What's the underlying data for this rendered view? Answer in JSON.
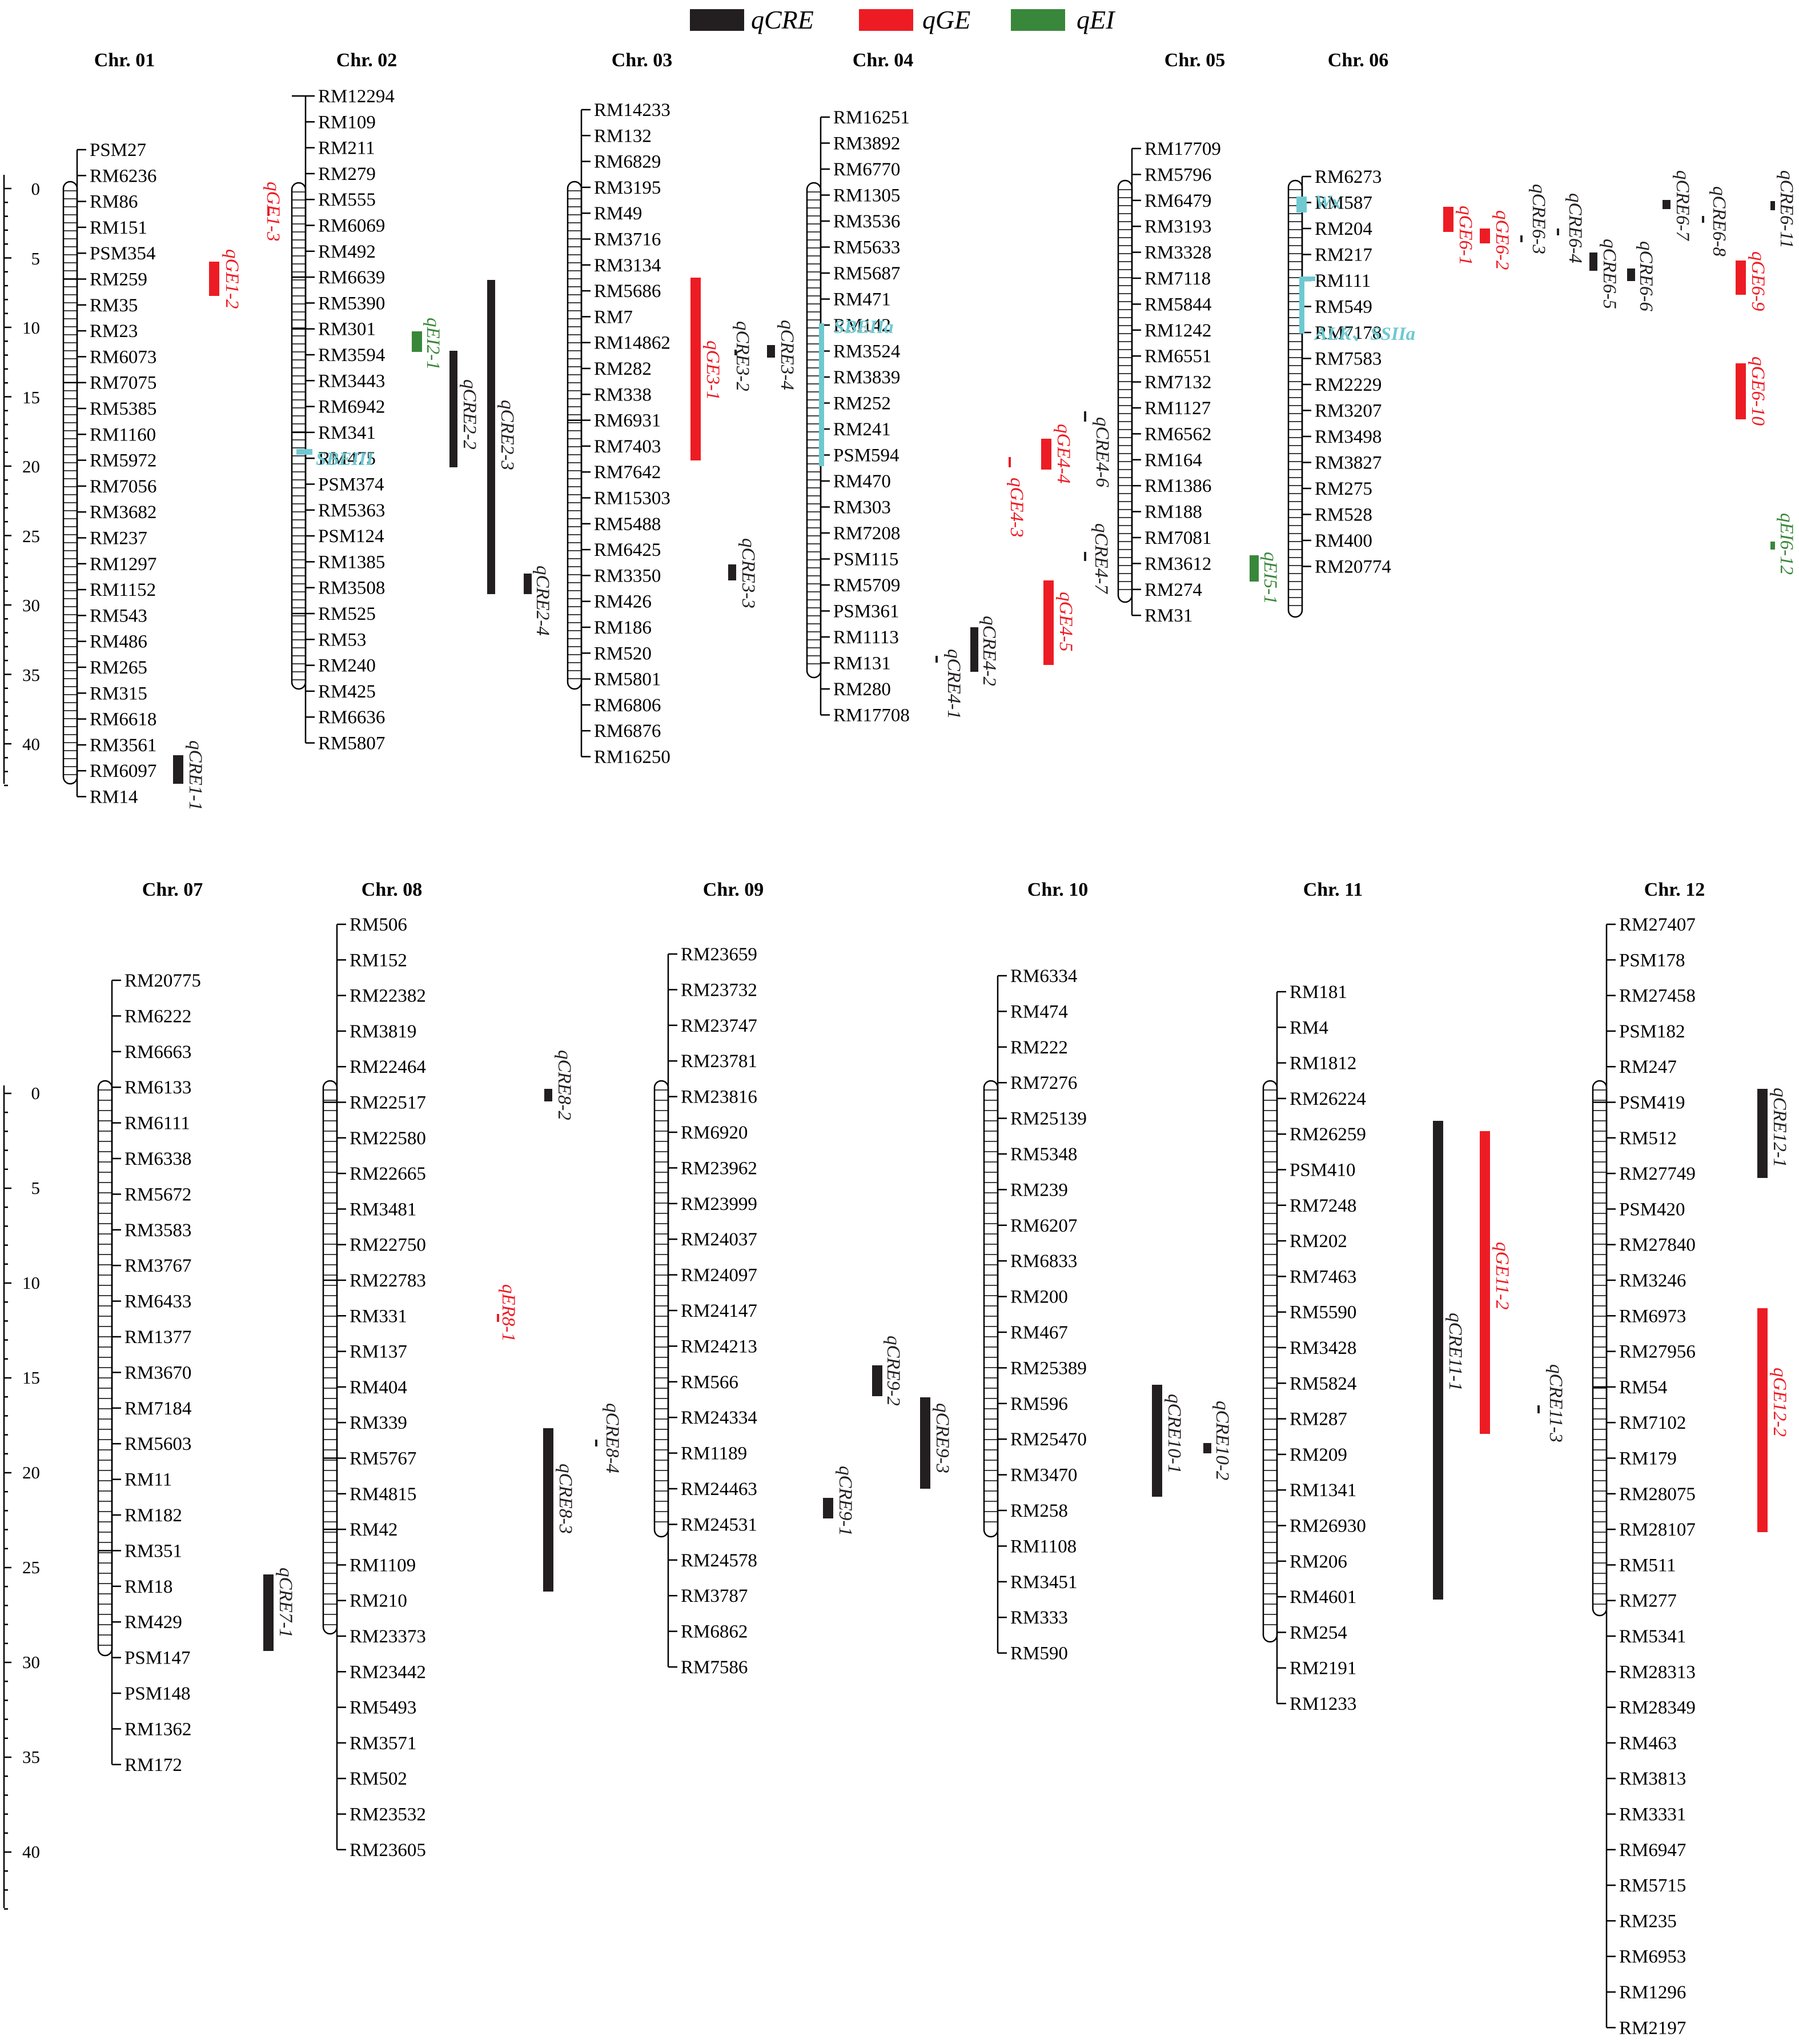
{
  "legend": [
    {
      "label": "qCRE",
      "color": "#231f20"
    },
    {
      "label": "qGE",
      "color": "#ed1c24"
    },
    {
      "label": "qEI",
      "color": "#39873a"
    }
  ],
  "axis_ticks": [
    "0",
    "5",
    "10",
    "15",
    "20",
    "25",
    "30",
    "35",
    "40"
  ],
  "chromosomes": [
    {
      "id": "c01",
      "name": "Chr. 01",
      "markers": [
        "PSM27",
        "RM6236",
        "RM86",
        "RM151",
        "PSM354",
        "RM259",
        "RM35",
        "RM23",
        "RM6073",
        "RM7075",
        "RM5385",
        "RM1160",
        "RM5972",
        "RM7056",
        "RM3682",
        "RM237",
        "RM1297",
        "RM1152",
        "RM543",
        "RM486",
        "RM265",
        "RM315",
        "RM6618",
        "RM3561",
        "RM6097",
        "RM14"
      ]
    },
    {
      "id": "c02",
      "name": "Chr. 02",
      "markers": [
        "RM12294",
        "RM109",
        "RM211",
        "RM279",
        "RM555",
        "RM6069",
        "RM492",
        "RM6639",
        "RM5390",
        "RM301",
        "RM3594",
        "RM3443",
        "RM6942",
        "RM341",
        "RM475",
        "PSM374",
        "RM5363",
        "PSM124",
        "RM1385",
        "RM3508",
        "RM525",
        "RM53",
        "RM240",
        "RM425",
        "RM6636",
        "RM5807"
      ]
    },
    {
      "id": "c03",
      "name": "Chr. 03",
      "markers": [
        "RM14233",
        "RM132",
        "RM6829",
        "RM3195",
        "RM49",
        "RM3716",
        "RM3134",
        "RM5686",
        "RM7",
        "RM14862",
        "RM282",
        "RM338",
        "RM6931",
        "RM7403",
        "RM7642",
        "RM15303",
        "RM5488",
        "RM6425",
        "RM3350",
        "RM426",
        "RM186",
        "RM520",
        "RM5801",
        "RM6806",
        "RM6876",
        "RM16250"
      ]
    },
    {
      "id": "c04",
      "name": "Chr. 04",
      "markers": [
        "RM16251",
        "RM3892",
        "RM6770",
        "RM1305",
        "RM3536",
        "RM5633",
        "RM5687",
        "RM471",
        "RM142",
        "RM3524",
        "RM3839",
        "RM252",
        "RM241",
        "PSM594",
        "RM470",
        "RM303",
        "RM7208",
        "PSM115",
        "RM5709",
        "PSM361",
        "RM1113",
        "RM131",
        "RM280",
        "RM17708"
      ]
    },
    {
      "id": "c05",
      "name": "Chr. 05",
      "markers": [
        "RM17709",
        "RM5796",
        "RM6479",
        "RM3193",
        "RM3328",
        "RM7118",
        "RM5844",
        "RM1242",
        "RM6551",
        "RM7132",
        "RM1127",
        "RM6562",
        "RM164",
        "RM1386",
        "RM188",
        "RM7081",
        "RM3612",
        "RM274",
        "RM31"
      ]
    },
    {
      "id": "c06",
      "name": "Chr. 06",
      "markers": [
        "RM6273",
        "RM587",
        "RM204",
        "RM217",
        "RM111",
        "RM549",
        "RM7178",
        "RM7583",
        "RM2229",
        "RM3207",
        "RM3498",
        "RM3827",
        "RM275",
        "RM528",
        "RM400",
        "RM20774"
      ]
    },
    {
      "id": "c07",
      "name": "Chr. 07",
      "markers": [
        "RM20775",
        "RM6222",
        "RM6663",
        "RM6133",
        "RM6111",
        "RM6338",
        "RM5672",
        "RM3583",
        "RM3767",
        "RM6433",
        "RM1377",
        "RM3670",
        "RM7184",
        "RM5603",
        "RM11",
        "RM182",
        "RM351",
        "RM18",
        "RM429",
        "PSM147",
        "PSM148",
        "RM1362",
        "RM172"
      ]
    },
    {
      "id": "c08",
      "name": "Chr. 08",
      "markers": [
        "RM506",
        "RM152",
        "RM22382",
        "RM3819",
        "RM22464",
        "RM22517",
        "RM22580",
        "RM22665",
        "RM3481",
        "RM22750",
        "RM22783",
        "RM331",
        "RM137",
        "RM404",
        "RM339",
        "RM5767",
        "RM4815",
        "RM42",
        "RM1109",
        "RM210",
        "RM23373",
        "RM23442",
        "RM5493",
        "RM3571",
        "RM502",
        "RM23532",
        "RM23605"
      ]
    },
    {
      "id": "c09",
      "name": "Chr. 09",
      "markers": [
        "RM23659",
        "RM23732",
        "RM23747",
        "RM23781",
        "RM23816",
        "RM6920",
        "RM23962",
        "RM23999",
        "RM24037",
        "RM24097",
        "RM24147",
        "RM24213",
        "RM566",
        "RM24334",
        "RM1189",
        "RM24463",
        "RM24531",
        "RM24578",
        "RM3787",
        "RM6862",
        "RM7586"
      ]
    },
    {
      "id": "c10",
      "name": "Chr. 10",
      "markers": [
        "RM6334",
        "RM474",
        "RM222",
        "RM7276",
        "RM25139",
        "RM5348",
        "RM239",
        "RM6207",
        "RM6833",
        "RM200",
        "RM467",
        "RM25389",
        "RM596",
        "RM25470",
        "RM3470",
        "RM258",
        "RM1108",
        "RM3451",
        "RM333",
        "RM590"
      ]
    },
    {
      "id": "c11",
      "name": "Chr. 11",
      "markers": [
        "RM181",
        "RM4",
        "RM1812",
        "RM26224",
        "RM26259",
        "PSM410",
        "RM7248",
        "RM202",
        "RM7463",
        "RM5590",
        "RM3428",
        "RM5824",
        "RM287",
        "RM209",
        "RM1341",
        "RM26930",
        "RM206",
        "RM4601",
        "RM254",
        "RM2191",
        "RM1233"
      ]
    },
    {
      "id": "c12",
      "name": "Chr. 12",
      "markers": [
        "RM27407",
        "PSM178",
        "RM27458",
        "PSM182",
        "RM247",
        "PSM419",
        "RM512",
        "RM27749",
        "PSM420",
        "RM27840",
        "RM3246",
        "RM6973",
        "RM27956",
        "RM54",
        "RM7102",
        "RM179",
        "RM28075",
        "RM28107",
        "RM511",
        "RM277",
        "RM5341",
        "RM28313",
        "RM28349",
        "RM463",
        "RM3813",
        "RM3331",
        "RM6947",
        "RM5715",
        "RM235",
        "RM6953",
        "RM1296",
        "RM2197"
      ]
    }
  ],
  "qtls": [
    {
      "name": "qGE1-3",
      "type": "qGE"
    },
    {
      "name": "qGE1-2",
      "type": "qGE"
    },
    {
      "name": "qCRE1-1",
      "type": "qCRE"
    },
    {
      "name": "qEI2-1",
      "type": "qEI"
    },
    {
      "name": "qCRE2-2",
      "type": "qCRE"
    },
    {
      "name": "qCRE2-3",
      "type": "qCRE"
    },
    {
      "name": "qCRE2-4",
      "type": "qCRE"
    },
    {
      "name": "qGE3-1",
      "type": "qGE"
    },
    {
      "name": "qCRE3-2",
      "type": "qCRE"
    },
    {
      "name": "qCRE3-4",
      "type": "qCRE"
    },
    {
      "name": "qCRE3-3",
      "type": "qCRE"
    },
    {
      "name": "qCRE4-2",
      "type": "qCRE"
    },
    {
      "name": "qCRE4-1",
      "type": "qCRE"
    },
    {
      "name": "qGE4-4",
      "type": "qGE"
    },
    {
      "name": "qGE4-3",
      "type": "qGE"
    },
    {
      "name": "qCRE4-6",
      "type": "qCRE"
    },
    {
      "name": "qCRE4-7",
      "type": "qCRE"
    },
    {
      "name": "qGE4-5",
      "type": "qGE"
    },
    {
      "name": "qEI5-1",
      "type": "qEI"
    },
    {
      "name": "qGE6-1",
      "type": "qGE"
    },
    {
      "name": "qGE6-2",
      "type": "qGE"
    },
    {
      "name": "qCRE6-3",
      "type": "qCRE"
    },
    {
      "name": "qCRE6-4",
      "type": "qCRE"
    },
    {
      "name": "qCRE6-5",
      "type": "qCRE"
    },
    {
      "name": "qCRE6-6",
      "type": "qCRE"
    },
    {
      "name": "qCRE6-7",
      "type": "qCRE"
    },
    {
      "name": "qCRE6-8",
      "type": "qCRE"
    },
    {
      "name": "qGE6-9",
      "type": "qGE"
    },
    {
      "name": "qCRE6-11",
      "type": "qCRE"
    },
    {
      "name": "qGE6-10",
      "type": "qGE"
    },
    {
      "name": "qEI6-12",
      "type": "qEI"
    },
    {
      "name": "qCRE7-1",
      "type": "qCRE"
    },
    {
      "name": "qCRE8-2",
      "type": "qCRE"
    },
    {
      "name": "qER8-1",
      "type": "qGE"
    },
    {
      "name": "qCRE8-4",
      "type": "qCRE"
    },
    {
      "name": "qCRE8-3",
      "type": "qCRE"
    },
    {
      "name": "qCRE9-2",
      "type": "qCRE"
    },
    {
      "name": "qCRE9-3",
      "type": "qCRE"
    },
    {
      "name": "qCRE9-1",
      "type": "qCRE"
    },
    {
      "name": "qCRE10-1",
      "type": "qCRE"
    },
    {
      "name": "qCRE10-2",
      "type": "qCRE"
    },
    {
      "name": "qCRE11-1",
      "type": "qCRE"
    },
    {
      "name": "qGE11-2",
      "type": "qGE"
    },
    {
      "name": "qCRE11-3",
      "type": "qCRE"
    },
    {
      "name": "qCRE12-1",
      "type": "qCRE"
    },
    {
      "name": "qGE12-2",
      "type": "qGE"
    }
  ],
  "genes": [
    "SBEIII",
    "SBEIIa",
    "Wx",
    "ALK、SSIIa"
  ],
  "gene_color": "#6ec9d0"
}
